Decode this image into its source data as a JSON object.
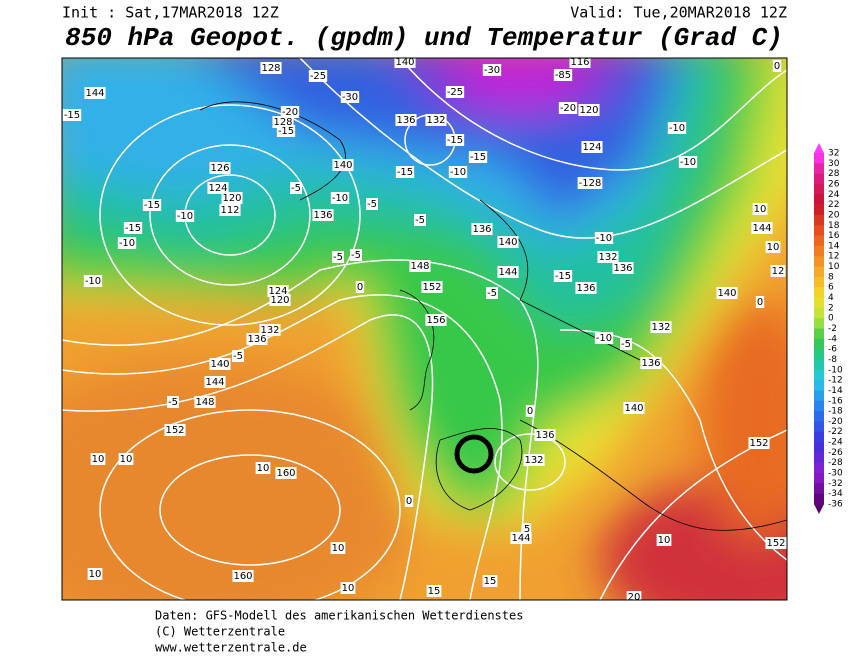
{
  "header": {
    "init": "Init : Sat,17MAR2018 12Z",
    "valid": "Valid: Tue,20MAR2018 12Z",
    "title": "850 hPa Geopot. (gpdm) und Temperatur (Grad C)"
  },
  "legend": {
    "values": [
      32,
      30,
      28,
      26,
      24,
      22,
      20,
      18,
      16,
      14,
      12,
      10,
      8,
      6,
      4,
      2,
      0,
      -2,
      -4,
      -6,
      -8,
      -10,
      -12,
      -14,
      -16,
      -18,
      -20,
      -22,
      -24,
      -26,
      -28,
      -30,
      -32,
      -34,
      -36
    ]
  },
  "map": {
    "contour_labels": [
      "144",
      "-15",
      "128",
      "-25",
      "140",
      "-30",
      "-85",
      "116",
      "0",
      "-20",
      "-30",
      "-25",
      "120",
      "-20",
      "136",
      "132",
      "128",
      "-15",
      "-10",
      "124",
      "-15",
      "-15",
      "-10",
      "-10",
      "-15",
      "140",
      "126",
      "124",
      "120",
      "112",
      "-15",
      "-10",
      "-15",
      "-10",
      "-10",
      "-128",
      "-5",
      "-10",
      "-5",
      "136",
      "-5",
      "136",
      "140",
      "-10",
      "132",
      "10",
      "144",
      "-5",
      "-5",
      "148",
      "144",
      "-15",
      "136",
      "10",
      "12",
      "0",
      "152",
      "-5",
      "136",
      "124",
      "120",
      "140",
      "156",
      "132",
      "-10",
      "-5",
      "0",
      "132",
      "136",
      "-5",
      "140",
      "136",
      "144",
      "148",
      "-5",
      "152",
      "0",
      "140",
      "136",
      "132",
      "152",
      "10",
      "10",
      "10",
      "160",
      "0",
      "5",
      "144",
      "10",
      "152",
      "10",
      "10",
      "160",
      "10",
      "15",
      "15",
      "20"
    ]
  },
  "footer": {
    "line1": "Daten: GFS-Modell des amerikanischen Wetterdienstes",
    "line2": "(C) Wetterzentrale",
    "line3": "www.wetterzentrale.de"
  }
}
